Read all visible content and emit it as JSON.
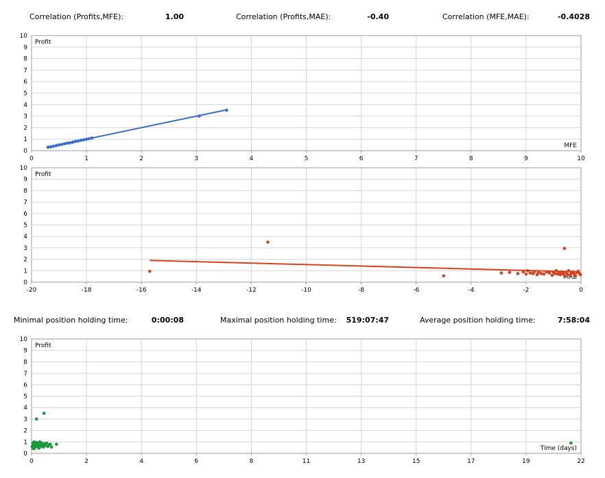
{
  "stats_top": {
    "corr_profit_mfe_label": "Correlation (Profits,MFE):",
    "corr_profit_mfe_value": "1.00",
    "corr_profit_mae_label": "Correlation (Profits,MAE):",
    "corr_profit_mae_value": "-0.40",
    "corr_mfe_mae_label": "Correlation (MFE,MAE):",
    "corr_mfe_mae_value": "-0.4028"
  },
  "stats_bottom": {
    "min_hold_label": "Minimal position holding time:",
    "min_hold_value": "0:00:08",
    "max_hold_label": "Maximal position holding time:",
    "max_hold_value": "519:07:47",
    "avg_hold_label": "Average position holding time:",
    "avg_hold_value": "7:58:04"
  },
  "colors": {
    "mfe": "#3a6bc8",
    "mae": "#d7401a",
    "time": "#189a3c",
    "grid": "#d4d4d4",
    "axis": "#9a9a9a"
  },
  "chart_data": [
    {
      "type": "scatter",
      "ylabel": "Profit",
      "xlabel": "MFE",
      "xlim": [
        0,
        10
      ],
      "ylim": [
        0,
        10
      ],
      "xticks": [
        "0",
        "1",
        "2",
        "3",
        "4",
        "5",
        "6",
        "7",
        "8",
        "9",
        "10"
      ],
      "yticks": [
        "0",
        "1",
        "2",
        "3",
        "4",
        "5",
        "6",
        "7",
        "8",
        "9",
        "10"
      ],
      "trendline": {
        "x": [
          0.3,
          3.55
        ],
        "y": [
          0.3,
          3.55
        ]
      },
      "points": [
        [
          0.3,
          0.3
        ],
        [
          0.35,
          0.33
        ],
        [
          0.4,
          0.38
        ],
        [
          0.45,
          0.44
        ],
        [
          0.5,
          0.5
        ],
        [
          0.55,
          0.54
        ],
        [
          0.6,
          0.6
        ],
        [
          0.65,
          0.65
        ],
        [
          0.7,
          0.68
        ],
        [
          0.75,
          0.74
        ],
        [
          0.8,
          0.8
        ],
        [
          0.85,
          0.84
        ],
        [
          0.9,
          0.9
        ],
        [
          0.95,
          0.94
        ],
        [
          1.0,
          1.0
        ],
        [
          1.05,
          1.04
        ],
        [
          1.1,
          1.1
        ],
        [
          3.05,
          3.0
        ],
        [
          3.55,
          3.52
        ]
      ]
    },
    {
      "type": "scatter",
      "ylabel": "Profit",
      "xlabel": "MAE",
      "xlim": [
        -20,
        0
      ],
      "ylim": [
        0,
        10
      ],
      "xticks": [
        "-20",
        "-18",
        "-16",
        "-14",
        "-12",
        "-10",
        "-8",
        "-6",
        "-4",
        "-2",
        "0"
      ],
      "yticks": [
        "0",
        "1",
        "2",
        "3",
        "4",
        "5",
        "6",
        "7",
        "8",
        "9",
        "10"
      ],
      "trendline": {
        "x": [
          -15.7,
          -0.1
        ],
        "y": [
          1.9,
          0.9
        ]
      },
      "points": [
        [
          -15.7,
          0.95
        ],
        [
          -11.4,
          3.5
        ],
        [
          -5.0,
          0.55
        ],
        [
          -0.6,
          2.95
        ],
        [
          -2.9,
          0.8
        ],
        [
          -2.6,
          0.85
        ],
        [
          -2.3,
          0.75
        ],
        [
          -2.1,
          0.9
        ],
        [
          -2.0,
          0.7
        ],
        [
          -1.95,
          1.0
        ],
        [
          -1.85,
          0.8
        ],
        [
          -1.75,
          0.75
        ],
        [
          -1.7,
          0.9
        ],
        [
          -1.6,
          0.65
        ],
        [
          -1.55,
          0.85
        ],
        [
          -1.45,
          0.75
        ],
        [
          -1.35,
          0.7
        ],
        [
          -1.25,
          0.9
        ],
        [
          -1.15,
          0.8
        ],
        [
          -1.05,
          0.6
        ],
        [
          -1.0,
          0.85
        ],
        [
          -0.95,
          0.75
        ],
        [
          -0.9,
          1.0
        ],
        [
          -0.85,
          0.7
        ],
        [
          -0.8,
          0.8
        ],
        [
          -0.75,
          0.65
        ],
        [
          -0.7,
          0.9
        ],
        [
          -0.65,
          0.75
        ],
        [
          -0.6,
          0.55
        ],
        [
          -0.55,
          0.85
        ],
        [
          -0.5,
          0.7
        ],
        [
          -0.45,
          1.0
        ],
        [
          -0.4,
          0.6
        ],
        [
          -0.35,
          0.8
        ],
        [
          -0.3,
          0.9
        ],
        [
          -0.25,
          0.7
        ],
        [
          -0.2,
          0.55
        ],
        [
          -0.15,
          0.85
        ],
        [
          -0.1,
          0.95
        ],
        [
          -0.05,
          0.75
        ],
        [
          -0.02,
          0.65
        ]
      ]
    },
    {
      "type": "scatter",
      "ylabel": "Profit",
      "xlabel": "Time (days)",
      "xlim": [
        0,
        22
      ],
      "ylim": [
        0,
        10
      ],
      "xticks": [
        "0",
        "2",
        "4",
        "6",
        "8",
        "11",
        "13",
        "15",
        "17",
        "19",
        "22"
      ],
      "yticks": [
        "0",
        "1",
        "2",
        "3",
        "4",
        "5",
        "6",
        "7",
        "8",
        "9",
        "10"
      ],
      "points": [
        [
          0.2,
          3.0
        ],
        [
          0.5,
          3.5
        ],
        [
          21.6,
          0.9
        ],
        [
          1.0,
          0.8
        ],
        [
          0.8,
          0.55
        ],
        [
          0.02,
          0.6
        ],
        [
          0.05,
          0.9
        ],
        [
          0.08,
          0.7
        ],
        [
          0.1,
          1.0
        ],
        [
          0.12,
          0.5
        ],
        [
          0.15,
          0.8
        ],
        [
          0.18,
          0.65
        ],
        [
          0.2,
          0.95
        ],
        [
          0.22,
          0.75
        ],
        [
          0.25,
          0.55
        ],
        [
          0.28,
          0.85
        ],
        [
          0.3,
          0.7
        ],
        [
          0.33,
          1.0
        ],
        [
          0.35,
          0.6
        ],
        [
          0.38,
          0.8
        ],
        [
          0.4,
          0.9
        ],
        [
          0.42,
          0.65
        ],
        [
          0.45,
          0.75
        ],
        [
          0.48,
          0.55
        ],
        [
          0.5,
          0.85
        ],
        [
          0.55,
          0.7
        ],
        [
          0.6,
          0.9
        ],
        [
          0.65,
          0.6
        ],
        [
          0.7,
          0.75
        ],
        [
          0.75,
          0.8
        ],
        [
          0.05,
          0.45
        ],
        [
          0.1,
          0.4
        ],
        [
          0.3,
          0.45
        ]
      ]
    }
  ]
}
